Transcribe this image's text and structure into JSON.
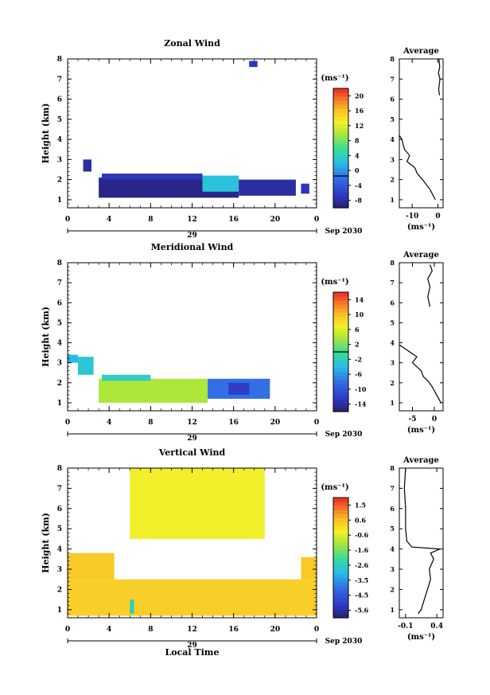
{
  "chart_data": [
    {
      "type": "heatmap",
      "title": "Zonal Wind",
      "ylabel": "Height (km)",
      "xlabel": "",
      "unit_label": "(ms⁻¹)",
      "date_label": "29",
      "month_label": "Sep 2030",
      "xlim": [
        0,
        24
      ],
      "ylim": [
        0.6,
        8
      ],
      "x_ticks": [
        "0",
        "4",
        "8",
        "12",
        "16",
        "20",
        "0"
      ],
      "y_ticks": [
        "1",
        "2",
        "3",
        "4",
        "5",
        "6",
        "7",
        "8"
      ],
      "colorbar": {
        "range": [
          -8,
          22
        ],
        "ticks": [
          "-8",
          "-4",
          "0",
          "4",
          "8",
          "12",
          "16",
          "20"
        ],
        "zero_line": 0
      },
      "cells": [
        {
          "x0": 3.0,
          "x1": 16.5,
          "y0": 1.1,
          "y1": 2.1,
          "value": -7
        },
        {
          "x0": 3.3,
          "x1": 13.0,
          "y0": 2.0,
          "y1": 2.3,
          "value": -5
        },
        {
          "x0": 13.0,
          "x1": 16.5,
          "y0": 1.4,
          "y1": 2.2,
          "value": 4
        },
        {
          "x0": 16.5,
          "x1": 22.0,
          "y0": 1.2,
          "y1": 2.0,
          "value": -6
        },
        {
          "x0": 1.5,
          "x1": 2.3,
          "y0": 2.4,
          "y1": 3.0,
          "value": -6
        },
        {
          "x0": 22.5,
          "x1": 23.3,
          "y0": 1.3,
          "y1": 1.8,
          "value": -5
        },
        {
          "x0": 17.5,
          "x1": 18.3,
          "y0": 7.6,
          "y1": 7.9,
          "value": -5
        }
      ],
      "average": {
        "title": "Average",
        "xlabel": "(ms⁻¹)",
        "xlim": [
          -15,
          2
        ],
        "x_ticks": [
          "-10",
          "0"
        ],
        "x_tick_values": [
          -10,
          0
        ],
        "y_ticks": [
          "1",
          "2",
          "3",
          "4",
          "5",
          "6",
          "7",
          "8"
        ],
        "profile": [
          [
            -1,
            1.0
          ],
          [
            -3,
            1.5
          ],
          [
            -6,
            2.0
          ],
          [
            -8,
            2.3
          ],
          [
            -9,
            2.6
          ],
          [
            -12,
            2.9
          ],
          [
            -11,
            3.2
          ],
          [
            -13,
            3.5
          ],
          [
            -14,
            4.0
          ],
          [
            -15,
            4.2
          ]
        ],
        "profile_upper": [
          [
            0.6,
            6.2
          ],
          [
            0.3,
            6.5
          ],
          [
            0.8,
            7.0
          ],
          [
            0.2,
            7.3
          ],
          [
            0.7,
            7.6
          ],
          [
            0.4,
            8.0
          ]
        ]
      }
    },
    {
      "type": "heatmap",
      "title": "Meridional Wind",
      "ylabel": "Height (km)",
      "xlabel": "",
      "unit_label": "(ms⁻¹)",
      "date_label": "29",
      "month_label": "Sep 2030",
      "xlim": [
        0,
        24
      ],
      "ylim": [
        0.6,
        8
      ],
      "x_ticks": [
        "0",
        "4",
        "8",
        "12",
        "16",
        "20",
        "0"
      ],
      "y_ticks": [
        "1",
        "2",
        "3",
        "4",
        "5",
        "6",
        "7",
        "8"
      ],
      "colorbar": {
        "range": [
          -16,
          16
        ],
        "ticks": [
          "-14",
          "-10",
          "-6",
          "-2",
          "2",
          "6",
          "10",
          "14"
        ],
        "zero_line": 0
      },
      "cells": [
        {
          "x0": 3.0,
          "x1": 13.5,
          "y0": 1.0,
          "y1": 2.2,
          "value": 4
        },
        {
          "x0": 3.3,
          "x1": 8.0,
          "y0": 2.1,
          "y1": 2.4,
          "value": -2
        },
        {
          "x0": 13.5,
          "x1": 19.5,
          "y0": 1.2,
          "y1": 2.2,
          "value": -8
        },
        {
          "x0": 15.5,
          "x1": 17.5,
          "y0": 1.4,
          "y1": 2.0,
          "value": -12
        },
        {
          "x0": 1.0,
          "x1": 2.5,
          "y0": 2.4,
          "y1": 3.3,
          "value": -3
        },
        {
          "x0": 0.0,
          "x1": 1.0,
          "y0": 3.0,
          "y1": 3.4,
          "value": -4
        }
      ],
      "average": {
        "title": "Average",
        "xlabel": "(ms⁻¹)",
        "xlim": [
          -8,
          2
        ],
        "x_ticks": [
          "-5",
          "0"
        ],
        "x_tick_values": [
          -5,
          0
        ],
        "y_ticks": [
          "1",
          "2",
          "3",
          "4",
          "5",
          "6",
          "7",
          "8"
        ],
        "profile": [
          [
            1.5,
            1.0
          ],
          [
            0.5,
            1.4
          ],
          [
            -0.5,
            1.8
          ],
          [
            -1.5,
            2.1
          ],
          [
            -2.5,
            2.3
          ],
          [
            -3,
            2.6
          ],
          [
            -5,
            3.0
          ],
          [
            -4,
            3.3
          ],
          [
            -6,
            3.6
          ],
          [
            -8,
            3.9
          ]
        ],
        "profile_upper": [
          [
            -1,
            5.8
          ],
          [
            -1.5,
            6.3
          ],
          [
            -1.0,
            6.8
          ],
          [
            -1.5,
            7.2
          ],
          [
            -0.5,
            7.6
          ],
          [
            -1.0,
            7.9
          ]
        ]
      }
    },
    {
      "type": "heatmap",
      "title": "Vertical Wind",
      "ylabel": "Height (km)",
      "xlabel": "Local Time",
      "unit_label": "(ms⁻¹)",
      "date_label": "29",
      "month_label": "Sep 2030",
      "xlim": [
        0,
        24
      ],
      "ylim": [
        0.6,
        8
      ],
      "x_ticks": [
        "0",
        "4",
        "8",
        "12",
        "16",
        "20",
        "0"
      ],
      "y_ticks": [
        "1",
        "2",
        "3",
        "4",
        "5",
        "6",
        "7",
        "8"
      ],
      "colorbar": {
        "range": [
          -6.2,
          2.2
        ],
        "ticks": [
          "-5.6",
          "-4.5",
          "-3.5",
          "-2.6",
          "-1.6",
          "-0.6",
          "0.6",
          "1.5"
        ],
        "zero_line": null
      },
      "cells": [
        {
          "x0": 0.0,
          "x1": 24.0,
          "y0": 0.7,
          "y1": 2.5,
          "value": 0.4
        },
        {
          "x0": 0.0,
          "x1": 4.5,
          "y0": 2.5,
          "y1": 3.8,
          "value": 0.5
        },
        {
          "x0": 22.5,
          "x1": 24.0,
          "y0": 2.5,
          "y1": 3.6,
          "value": 0.5
        },
        {
          "x0": 6.0,
          "x1": 19.0,
          "y0": 4.5,
          "y1": 8.0,
          "value": -0.2
        },
        {
          "x0": 6.0,
          "x1": 6.4,
          "y0": 0.8,
          "y1": 1.5,
          "value": -2.5
        }
      ],
      "average": {
        "title": "Average",
        "xlabel": "(ms⁻¹)",
        "xlim": [
          -0.2,
          0.5
        ],
        "x_ticks": [
          "-0.1",
          "0.4"
        ],
        "x_tick_values": [
          -0.1,
          0.4
        ],
        "y_ticks": [
          "1",
          "2",
          "3",
          "4",
          "5",
          "6",
          "7",
          "8"
        ],
        "profile": [
          [
            0.1,
            0.8
          ],
          [
            0.15,
            1.0
          ],
          [
            0.2,
            1.5
          ],
          [
            0.25,
            2.0
          ],
          [
            0.3,
            2.5
          ],
          [
            0.28,
            3.0
          ],
          [
            0.35,
            3.5
          ],
          [
            0.3,
            3.8
          ],
          [
            0.45,
            4.0
          ],
          [
            0.0,
            4.1
          ],
          [
            -0.08,
            4.4
          ],
          [
            -0.1,
            5.0
          ],
          [
            -0.1,
            6.0
          ],
          [
            -0.12,
            7.0
          ],
          [
            -0.1,
            8.0
          ]
        ]
      }
    }
  ]
}
